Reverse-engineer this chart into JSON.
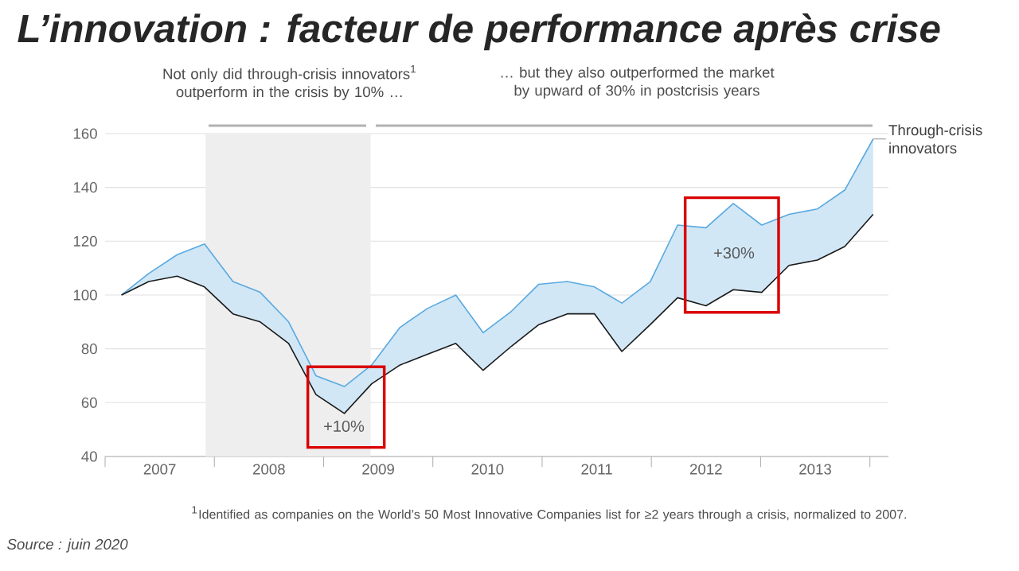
{
  "chart_data": {
    "type": "line",
    "title": "L’innovation : facteur de performance après crise",
    "annotations": [
      "Not only did through-crisis innovators$^{1}$ outperform in the crisis by 10% …",
      "… but they also outperformed the market by upward of 30% in postcrisis years",
      "$^{1}$Identified as companies on the World’s 50 Most Innovative Companies list for ≥2 years through a crisis, normalized to 2007.",
      "Source : juin 2020",
      "+10%",
      "+30%"
    ],
    "x": [
      2007.15,
      2007.4,
      2007.66,
      2007.91,
      2008.17,
      2008.42,
      2008.68,
      2008.93,
      2009.19,
      2009.44,
      2009.7,
      2009.95,
      2010.21,
      2010.46,
      2010.72,
      2010.97,
      2011.23,
      2011.48,
      2011.73,
      2011.99,
      2012.24,
      2012.5,
      2012.75,
      2013.01,
      2013.26,
      2013.52,
      2013.77,
      2014.03
    ],
    "series": [
      {
        "name": "Through-crisis innovators",
        "color": "#5aa9e0",
        "values": [
          100,
          108,
          115,
          119,
          105,
          101,
          90,
          70,
          66,
          74,
          88,
          95,
          100,
          86,
          94,
          104,
          105,
          103,
          97,
          105,
          126,
          125,
          134,
          126,
          130,
          132,
          139,
          158
        ],
        "lower": [
          100,
          105,
          107,
          103,
          93,
          90,
          82,
          63,
          56,
          67,
          74,
          78,
          82,
          72,
          81,
          89,
          93,
          93,
          79,
          89,
          99,
          96,
          102,
          101,
          111,
          113,
          118,
          130
        ],
        "upper": [
          100,
          108,
          115,
          119,
          105,
          101,
          90,
          70,
          66,
          74,
          88,
          95,
          100,
          86,
          94,
          104,
          105,
          103,
          97,
          105,
          126,
          125,
          134,
          126,
          130,
          132,
          139,
          158
        ]
      },
      {
        "color": "#1a1a1a",
        "values": [
          100,
          105,
          107,
          103,
          93,
          90,
          82,
          63,
          56,
          67,
          74,
          78,
          82,
          72,
          81,
          89,
          93,
          93,
          79,
          89,
          99,
          96,
          102,
          101,
          111,
          113,
          118,
          130
        ]
      }
    ],
    "xlim": [
      2007,
      2014.17
    ],
    "xticks": [
      {
        "value": 2007,
        "label": null
      },
      {
        "value": 2007.5,
        "label": "2007"
      },
      {
        "value": 2008,
        "label": null
      },
      {
        "value": 2008.5,
        "label": "2008"
      },
      {
        "value": 2009,
        "label": null
      },
      {
        "value": 2009.5,
        "label": "2009"
      },
      {
        "value": 2010,
        "label": null
      },
      {
        "value": 2010.5,
        "label": "2010"
      },
      {
        "value": 2011,
        "label": null
      },
      {
        "value": 2011.5,
        "label": "2011"
      },
      {
        "value": 2012,
        "label": null
      },
      {
        "value": 2012.5,
        "label": "2012"
      },
      {
        "value": 2013,
        "label": null
      },
      {
        "value": 2013.5,
        "label": "2013"
      },
      {
        "value": 2014,
        "label": null
      }
    ],
    "ylim": [
      40,
      160
    ],
    "yticks": [
      40,
      60,
      80,
      100,
      120,
      140,
      160
    ],
    "bands": [
      {
        "axis": "x",
        "from": 2007.92,
        "to": 2009.43,
        "color": "#eeeeee"
      }
    ],
    "grid": "y"
  }
}
